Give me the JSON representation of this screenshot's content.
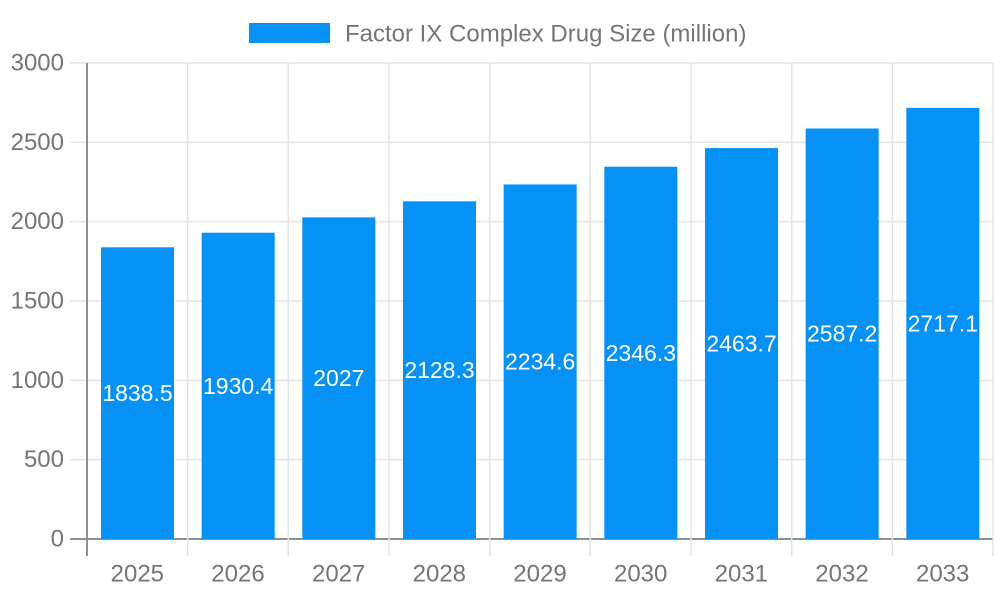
{
  "chart_data": {
    "type": "bar",
    "title": "",
    "categories": [
      "2025",
      "2026",
      "2027",
      "2028",
      "2029",
      "2030",
      "2031",
      "2032",
      "2033"
    ],
    "series": [
      {
        "name": "Factor IX Complex Drug Size (million)",
        "values": [
          1838.5,
          1930.4,
          2027,
          2128.3,
          2234.6,
          2346.3,
          2463.7,
          2587.2,
          2717.1
        ]
      }
    ],
    "value_labels": [
      "1838.5",
      "1930.4",
      "2027",
      "2128.3",
      "2234.6",
      "2346.3",
      "2463.7",
      "2587.2",
      "2717.1"
    ],
    "xlabel": "",
    "ylabel": "",
    "ylim": [
      0,
      3000
    ],
    "ytick_interval": 500,
    "ytick_labels": [
      "0",
      "500",
      "1000",
      "1500",
      "2000",
      "2500",
      "3000"
    ],
    "legend_position": "top-center",
    "grid": true,
    "style": {
      "bar_color": "#0591f5",
      "grid_color": "#e3e3e3",
      "axis_color": "#8f8f8f",
      "text_color": "#757575",
      "value_label_color": "#ffffff",
      "background_color": "#ffffff"
    }
  }
}
